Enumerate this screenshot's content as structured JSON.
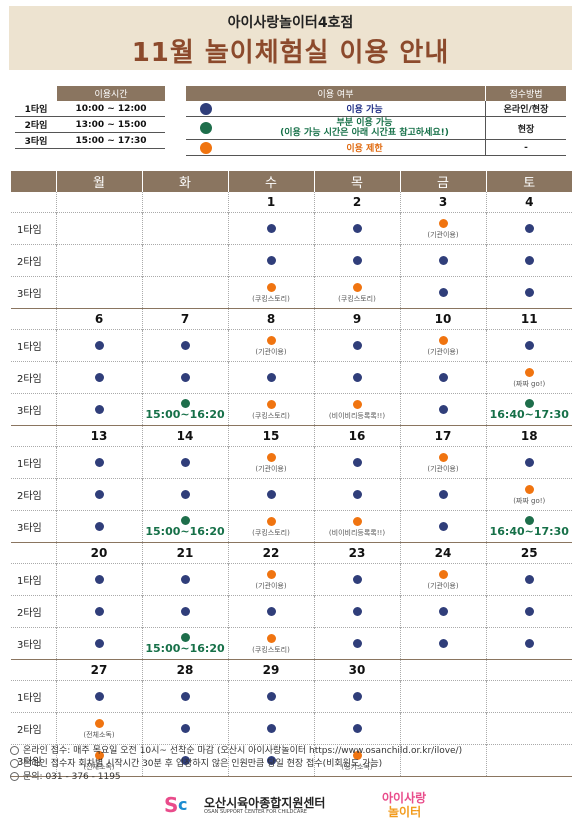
{
  "header": {
    "subtitle": "아이사랑놀이터4호점",
    "title": "11월 놀이체험실 이용 안내"
  },
  "time_table": {
    "header": "이용시간",
    "rows": [
      {
        "slot": "1타임",
        "time": "10:00 ~ 12:00"
      },
      {
        "slot": "2타임",
        "time": "13:00 ~ 15:00"
      },
      {
        "slot": "3타임",
        "time": "15:00 ~ 17:30"
      }
    ]
  },
  "status_table": {
    "header_status": "이용 여부",
    "header_method": "접수방법",
    "rows": [
      {
        "color": "#303e7a",
        "icon": "blue-dot-icon",
        "text1": "이용 가능",
        "text2": "",
        "method": "온라인/현장"
      },
      {
        "color": "#1e6e4b",
        "icon": "green-dot-icon",
        "text1": "부분 이용 가능",
        "text2": "(이용 가능 시간은 아래 시간표 참고하세요!)",
        "method": "현장"
      },
      {
        "color": "#f07410",
        "icon": "orange-dot-icon",
        "text1": "이용 제한",
        "text2": "",
        "method": "-"
      }
    ]
  },
  "calendar": {
    "weekdays": [
      "월",
      "화",
      "수",
      "목",
      "금",
      "토"
    ],
    "slot_labels": [
      "1타임",
      "2타임",
      "3타임"
    ],
    "weeks": [
      {
        "dates": [
          "",
          "",
          "1",
          "2",
          "3",
          "4"
        ],
        "slots": [
          [
            {
              "s": "none"
            },
            {
              "s": "none"
            },
            {
              "s": "b"
            },
            {
              "s": "b"
            },
            {
              "s": "o",
              "n": "(기관이용)"
            },
            {
              "s": "b"
            }
          ],
          [
            {
              "s": "none"
            },
            {
              "s": "none"
            },
            {
              "s": "b"
            },
            {
              "s": "b"
            },
            {
              "s": "b"
            },
            {
              "s": "b"
            }
          ],
          [
            {
              "s": "none"
            },
            {
              "s": "none"
            },
            {
              "s": "o",
              "n": "(쿠킹스토리)"
            },
            {
              "s": "o",
              "n": "(쿠킹스토리)"
            },
            {
              "s": "b"
            },
            {
              "s": "b"
            }
          ]
        ]
      },
      {
        "dates": [
          "6",
          "7",
          "8",
          "9",
          "10",
          "11"
        ],
        "slots": [
          [
            {
              "s": "b"
            },
            {
              "s": "b"
            },
            {
              "s": "o",
              "n": "(기관이용)"
            },
            {
              "s": "b"
            },
            {
              "s": "o",
              "n": "(기관이용)"
            },
            {
              "s": "b"
            }
          ],
          [
            {
              "s": "b"
            },
            {
              "s": "b"
            },
            {
              "s": "b"
            },
            {
              "s": "b"
            },
            {
              "s": "b"
            },
            {
              "s": "o",
              "n": "(짜짜 go!)"
            }
          ],
          [
            {
              "s": "b"
            },
            {
              "s": "g",
              "t": "15:00~16:20"
            },
            {
              "s": "o",
              "n": "(쿠킹스토리)"
            },
            {
              "s": "o",
              "n": "(비이비리등록록!!)"
            },
            {
              "s": "b"
            },
            {
              "s": "g",
              "t": "16:40~17:30"
            }
          ]
        ]
      },
      {
        "dates": [
          "13",
          "14",
          "15",
          "16",
          "17",
          "18"
        ],
        "slots": [
          [
            {
              "s": "b"
            },
            {
              "s": "b"
            },
            {
              "s": "o",
              "n": "(기관이용)"
            },
            {
              "s": "b"
            },
            {
              "s": "o",
              "n": "(기관이용)"
            },
            {
              "s": "b"
            }
          ],
          [
            {
              "s": "b"
            },
            {
              "s": "b"
            },
            {
              "s": "b"
            },
            {
              "s": "b"
            },
            {
              "s": "b"
            },
            {
              "s": "o",
              "n": "(짜짜 go!)"
            }
          ],
          [
            {
              "s": "b"
            },
            {
              "s": "g",
              "t": "15:00~16:20"
            },
            {
              "s": "o",
              "n": "(쿠킹스토리)"
            },
            {
              "s": "o",
              "n": "(비이비리등록록!!)"
            },
            {
              "s": "b"
            },
            {
              "s": "g",
              "t": "16:40~17:30"
            }
          ]
        ]
      },
      {
        "dates": [
          "20",
          "21",
          "22",
          "23",
          "24",
          "25"
        ],
        "slots": [
          [
            {
              "s": "b"
            },
            {
              "s": "b"
            },
            {
              "s": "o",
              "n": "(기관이용)"
            },
            {
              "s": "b"
            },
            {
              "s": "o",
              "n": "(기관이용)"
            },
            {
              "s": "b"
            }
          ],
          [
            {
              "s": "b"
            },
            {
              "s": "b"
            },
            {
              "s": "b"
            },
            {
              "s": "b"
            },
            {
              "s": "b"
            },
            {
              "s": "b"
            }
          ],
          [
            {
              "s": "b"
            },
            {
              "s": "g",
              "t": "15:00~16:20"
            },
            {
              "s": "o",
              "n": "(쿠킹스토리)"
            },
            {
              "s": "b"
            },
            {
              "s": "b"
            },
            {
              "s": "b"
            }
          ]
        ]
      },
      {
        "dates": [
          "27",
          "28",
          "29",
          "30",
          "",
          ""
        ],
        "slots": [
          [
            {
              "s": "b"
            },
            {
              "s": "b"
            },
            {
              "s": "b"
            },
            {
              "s": "b"
            },
            {
              "s": "none"
            },
            {
              "s": "none"
            }
          ],
          [
            {
              "s": "o",
              "n": "(전체소독)"
            },
            {
              "s": "b"
            },
            {
              "s": "b"
            },
            {
              "s": "b"
            },
            {
              "s": "none"
            },
            {
              "s": "none"
            }
          ],
          [
            {
              "s": "o",
              "n": "(전체소독)"
            },
            {
              "s": "b"
            },
            {
              "s": "b"
            },
            {
              "s": "o",
              "n": "(정기소독)"
            },
            {
              "s": "none"
            },
            {
              "s": "none"
            }
          ]
        ]
      }
    ]
  },
  "footer": {
    "lines": [
      "온라인 접수: 매주 목요일 오전 10시~ 선착순 마감 (오산시 아이사랑놀이터 https://www.osanchild.or.kr/ilove/)",
      "온라인 접수자 회차별 시작시간 30분 후 입장하지 않은 인원만큼 당일 현장 접수(비회원도 가능)",
      "문의: 031 - 376 - 1195"
    ],
    "logo1_name": "오산시육아종합지원센터",
    "logo1_eng": "OSAN SUPPORT CENTER FOR CHILDCARE",
    "logo2_line1": "아이사랑",
    "logo2_line2": "놀이터"
  }
}
